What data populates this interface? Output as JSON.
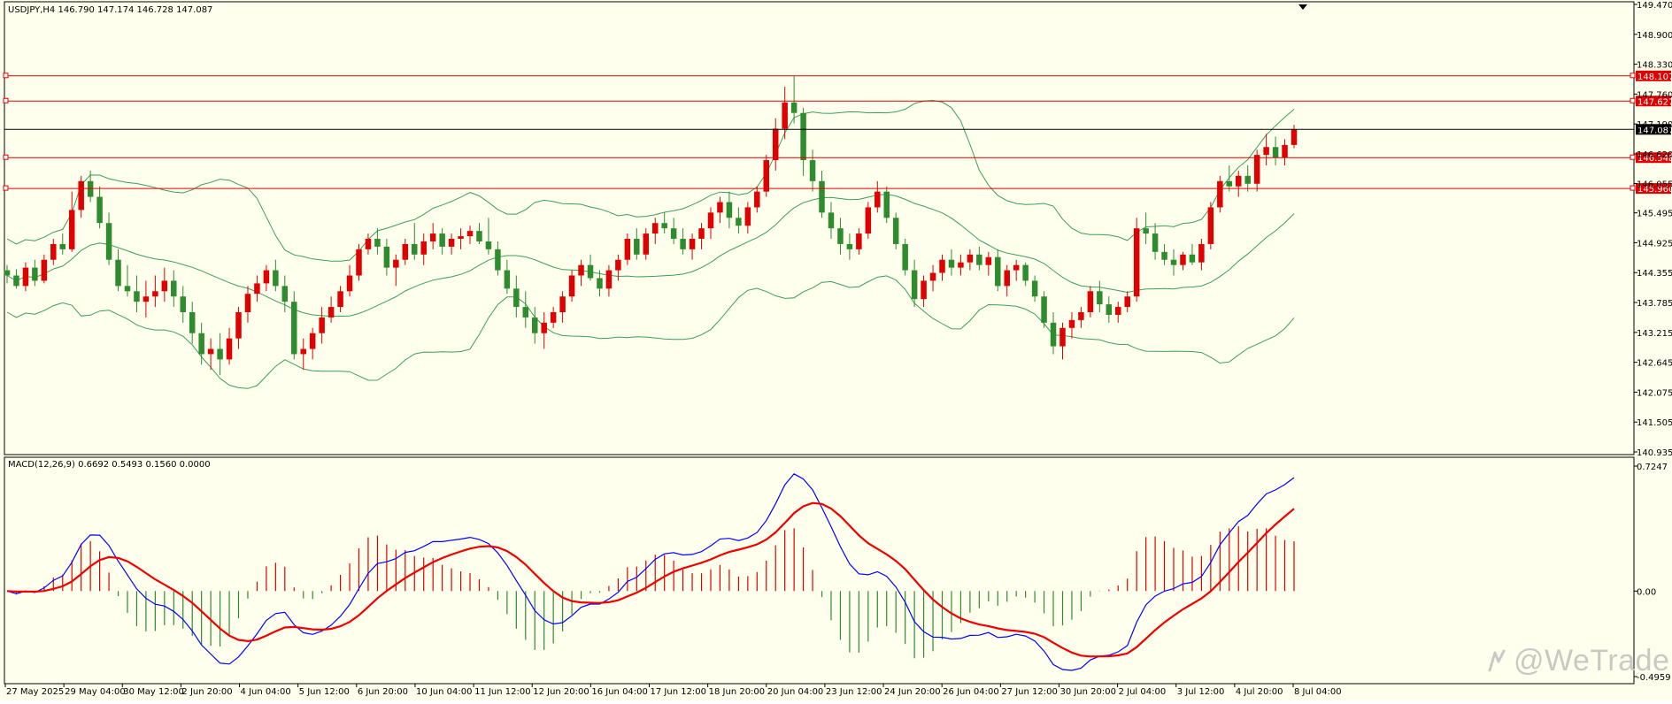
{
  "colors": {
    "background": "#ffffee",
    "frame": "#000000",
    "bull_candle": "#e00000",
    "bear_candle": "#2e8b2e",
    "bollinger": "#3c9e5a",
    "level_line": "#e00000",
    "current_price_line": "#000000",
    "macd_line": "#0000ff",
    "signal_line": "#ee0000",
    "hist_positive": "#e00000",
    "hist_negative": "#2e8b2e",
    "watermark": "#c9c9c4"
  },
  "header": {
    "symbol_info": "USDJPY,H4",
    "ohlc": "146.790 147.174 146.728 147.087"
  },
  "main_chart": {
    "type": "candlestick",
    "y_ticks": [
      "149.470",
      "148.900",
      "148.330",
      "147.760",
      "147.190",
      "146.620",
      "146.055",
      "145.495",
      "144.925",
      "144.355",
      "143.785",
      "143.215",
      "142.645",
      "142.075",
      "141.505",
      "140.935"
    ],
    "ylim": [
      140.935,
      149.47
    ],
    "level_lines": [
      {
        "value": 148.107,
        "label": "148.107"
      },
      {
        "value": 147.627,
        "label": "147.627"
      },
      {
        "value": 146.548,
        "label": "146.548"
      },
      {
        "value": 145.96,
        "label": "145.960"
      }
    ],
    "current_price": {
      "value": 147.087,
      "label": "147.087"
    },
    "indicators": [
      "Bollinger Bands"
    ]
  },
  "chart_data": {
    "type": "candlestick",
    "symbol": "USDJPY",
    "timeframe": "H4",
    "candles": [
      [
        144.4,
        144.5,
        144.15,
        144.3
      ],
      [
        144.3,
        144.42,
        144.05,
        144.1
      ],
      [
        144.1,
        144.55,
        144.0,
        144.45
      ],
      [
        144.45,
        144.6,
        144.1,
        144.2
      ],
      [
        144.2,
        144.7,
        144.15,
        144.6
      ],
      [
        144.6,
        145.0,
        144.5,
        144.9
      ],
      [
        144.9,
        145.1,
        144.7,
        144.8
      ],
      [
        144.8,
        145.9,
        144.75,
        145.55
      ],
      [
        145.55,
        146.2,
        145.4,
        146.1
      ],
      [
        146.1,
        146.3,
        145.7,
        145.8
      ],
      [
        145.8,
        146.0,
        145.2,
        145.3
      ],
      [
        145.3,
        145.5,
        144.5,
        144.6
      ],
      [
        144.6,
        144.8,
        144.0,
        144.1
      ],
      [
        144.1,
        144.5,
        143.9,
        144.0
      ],
      [
        144.0,
        144.3,
        143.6,
        143.8
      ],
      [
        143.8,
        144.2,
        143.5,
        143.9
      ],
      [
        143.9,
        144.3,
        143.7,
        144.0
      ],
      [
        144.0,
        144.45,
        143.8,
        144.2
      ],
      [
        144.2,
        144.4,
        143.7,
        143.9
      ],
      [
        143.9,
        144.1,
        143.4,
        143.6
      ],
      [
        143.6,
        143.8,
        143.0,
        143.2
      ],
      [
        143.2,
        143.4,
        142.6,
        142.8
      ],
      [
        142.8,
        143.1,
        142.5,
        142.9
      ],
      [
        142.9,
        143.2,
        142.4,
        142.7
      ],
      [
        142.7,
        143.3,
        142.6,
        143.1
      ],
      [
        143.1,
        143.7,
        142.9,
        143.6
      ],
      [
        143.6,
        144.1,
        143.4,
        143.95
      ],
      [
        143.95,
        144.3,
        143.8,
        144.15
      ],
      [
        144.15,
        144.5,
        144.0,
        144.4
      ],
      [
        144.4,
        144.6,
        144.0,
        144.1
      ],
      [
        144.1,
        144.3,
        143.6,
        143.8
      ],
      [
        143.8,
        144.0,
        142.7,
        142.8
      ],
      [
        142.8,
        143.1,
        142.5,
        142.9
      ],
      [
        142.9,
        143.3,
        142.7,
        143.2
      ],
      [
        143.2,
        143.7,
        143.0,
        143.5
      ],
      [
        143.5,
        143.9,
        143.4,
        143.7
      ],
      [
        143.7,
        144.1,
        143.6,
        144.0
      ],
      [
        144.0,
        144.5,
        143.9,
        144.3
      ],
      [
        144.3,
        144.9,
        144.2,
        144.8
      ],
      [
        144.8,
        145.1,
        144.7,
        145.0
      ],
      [
        145.0,
        145.2,
        144.7,
        144.85
      ],
      [
        144.85,
        145.0,
        144.3,
        144.45
      ],
      [
        144.45,
        144.7,
        144.1,
        144.6
      ],
      [
        144.6,
        145.0,
        144.5,
        144.9
      ],
      [
        144.9,
        145.3,
        144.6,
        144.7
      ],
      [
        144.7,
        145.1,
        144.5,
        144.95
      ],
      [
        144.95,
        145.3,
        144.8,
        145.1
      ],
      [
        145.1,
        145.2,
        144.7,
        144.85
      ],
      [
        144.85,
        145.1,
        144.7,
        145.0
      ],
      [
        145.0,
        145.2,
        144.8,
        145.05
      ],
      [
        145.05,
        145.25,
        144.9,
        145.15
      ],
      [
        145.15,
        145.3,
        144.9,
        144.95
      ],
      [
        144.95,
        145.4,
        144.7,
        144.8
      ],
      [
        144.8,
        144.95,
        144.3,
        144.4
      ],
      [
        144.4,
        144.6,
        143.95,
        144.05
      ],
      [
        144.05,
        144.3,
        143.5,
        143.7
      ],
      [
        143.7,
        144.0,
        143.3,
        143.5
      ],
      [
        143.5,
        143.7,
        143.0,
        143.2
      ],
      [
        143.2,
        143.6,
        142.9,
        143.4
      ],
      [
        143.4,
        143.7,
        143.3,
        143.6
      ],
      [
        143.6,
        144.0,
        143.4,
        143.9
      ],
      [
        143.9,
        144.4,
        143.8,
        144.3
      ],
      [
        144.3,
        144.6,
        144.1,
        144.5
      ],
      [
        144.5,
        144.7,
        144.2,
        144.25
      ],
      [
        144.25,
        144.4,
        143.9,
        144.05
      ],
      [
        144.05,
        144.5,
        143.9,
        144.4
      ],
      [
        144.4,
        144.7,
        144.2,
        144.6
      ],
      [
        144.6,
        145.1,
        144.5,
        145.0
      ],
      [
        145.0,
        145.2,
        144.6,
        144.7
      ],
      [
        144.7,
        145.2,
        144.6,
        145.1
      ],
      [
        145.1,
        145.4,
        144.9,
        145.3
      ],
      [
        145.3,
        145.5,
        145.1,
        145.2
      ],
      [
        145.2,
        145.4,
        144.9,
        145.0
      ],
      [
        145.0,
        145.2,
        144.7,
        144.8
      ],
      [
        144.8,
        145.1,
        144.6,
        145.0
      ],
      [
        145.0,
        145.3,
        144.8,
        145.2
      ],
      [
        145.2,
        145.6,
        145.0,
        145.5
      ],
      [
        145.5,
        145.8,
        145.3,
        145.7
      ],
      [
        145.7,
        145.9,
        145.2,
        145.4
      ],
      [
        145.4,
        145.6,
        145.1,
        145.25
      ],
      [
        145.25,
        145.7,
        145.1,
        145.6
      ],
      [
        145.6,
        146.0,
        145.5,
        145.9
      ],
      [
        145.9,
        146.6,
        145.8,
        146.5
      ],
      [
        146.5,
        147.3,
        146.3,
        147.1
      ],
      [
        147.1,
        147.9,
        146.9,
        147.6
      ],
      [
        147.6,
        148.1,
        147.2,
        147.4
      ],
      [
        147.4,
        147.5,
        146.2,
        146.5
      ],
      [
        146.5,
        146.7,
        145.9,
        146.1
      ],
      [
        146.1,
        146.3,
        145.4,
        145.5
      ],
      [
        145.5,
        145.7,
        145.0,
        145.2
      ],
      [
        145.2,
        145.4,
        144.7,
        144.9
      ],
      [
        144.9,
        145.1,
        144.6,
        144.8
      ],
      [
        144.8,
        145.2,
        144.7,
        145.1
      ],
      [
        145.1,
        145.7,
        145.0,
        145.6
      ],
      [
        145.6,
        146.1,
        145.5,
        145.9
      ],
      [
        145.9,
        146.0,
        145.3,
        145.4
      ],
      [
        145.4,
        145.5,
        144.8,
        144.9
      ],
      [
        144.9,
        145.0,
        144.3,
        144.4
      ],
      [
        144.4,
        144.6,
        143.7,
        143.85
      ],
      [
        143.85,
        144.3,
        143.7,
        144.2
      ],
      [
        144.2,
        144.5,
        144.0,
        144.35
      ],
      [
        144.35,
        144.7,
        144.2,
        144.6
      ],
      [
        144.6,
        144.8,
        144.3,
        144.45
      ],
      [
        144.45,
        144.7,
        144.3,
        144.55
      ],
      [
        144.55,
        144.8,
        144.4,
        144.7
      ],
      [
        144.7,
        144.85,
        144.4,
        144.5
      ],
      [
        144.5,
        144.75,
        144.3,
        144.65
      ],
      [
        144.65,
        144.8,
        144.0,
        144.1
      ],
      [
        144.1,
        144.5,
        143.9,
        144.4
      ],
      [
        144.4,
        144.6,
        144.2,
        144.5
      ],
      [
        144.5,
        144.55,
        144.1,
        144.2
      ],
      [
        144.2,
        144.3,
        143.8,
        143.9
      ],
      [
        143.9,
        144.0,
        143.3,
        143.4
      ],
      [
        143.4,
        143.6,
        142.8,
        142.95
      ],
      [
        142.95,
        143.4,
        142.7,
        143.3
      ],
      [
        143.3,
        143.6,
        143.1,
        143.45
      ],
      [
        143.45,
        143.7,
        143.3,
        143.6
      ],
      [
        143.6,
        144.1,
        143.5,
        144.0
      ],
      [
        144.0,
        144.2,
        143.6,
        143.75
      ],
      [
        143.75,
        143.9,
        143.4,
        143.55
      ],
      [
        143.55,
        143.8,
        143.4,
        143.7
      ],
      [
        143.7,
        144.0,
        143.6,
        143.9
      ],
      [
        143.9,
        145.4,
        143.8,
        145.2
      ],
      [
        145.2,
        145.5,
        144.9,
        145.1
      ],
      [
        145.1,
        145.3,
        144.6,
        144.75
      ],
      [
        144.75,
        144.9,
        144.5,
        144.6
      ],
      [
        144.6,
        144.8,
        144.3,
        144.5
      ],
      [
        144.5,
        144.75,
        144.4,
        144.7
      ],
      [
        144.7,
        144.9,
        144.5,
        144.55
      ],
      [
        144.55,
        145.0,
        144.4,
        144.9
      ],
      [
        144.9,
        145.7,
        144.8,
        145.6
      ],
      [
        145.6,
        146.2,
        145.5,
        146.1
      ],
      [
        146.1,
        146.4,
        145.9,
        146.0
      ],
      [
        146.0,
        146.3,
        145.8,
        146.2
      ],
      [
        146.2,
        146.4,
        145.9,
        146.05
      ],
      [
        146.05,
        146.7,
        145.9,
        146.6
      ],
      [
        146.6,
        147.0,
        146.4,
        146.75
      ],
      [
        146.75,
        146.95,
        146.4,
        146.55
      ],
      [
        146.55,
        146.9,
        146.4,
        146.79
      ],
      [
        146.79,
        147.174,
        146.728,
        147.087
      ]
    ],
    "x_labels": [
      "27 May 2025",
      "29 May 04:00",
      "30 May 12:00",
      "2 Jun 20:00",
      "4 Jun 04:00",
      "5 Jun 12:00",
      "6 Jun 20:00",
      "10 Jun 04:00",
      "11 Jun 12:00",
      "12 Jun 20:00",
      "16 Jun 04:00",
      "17 Jun 12:00",
      "18 Jun 20:00",
      "20 Jun 04:00",
      "23 Jun 12:00",
      "24 Jun 20:00",
      "26 Jun 04:00",
      "27 Jun 12:00",
      "30 Jun 20:00",
      "2 Jul 04:00",
      "3 Jul 12:00",
      "4 Jul 20:00",
      "8 Jul 04:00"
    ],
    "series": [
      {
        "name": "MACD",
        "values": []
      }
    ]
  },
  "macd_panel": {
    "label": "MACD(12,26,9) 0.6692 0.5493 0.1560 0.0000",
    "y_ticks": [
      "0.7247",
      "0.00",
      "-0.4959"
    ],
    "ylim": [
      -0.4959,
      0.7247
    ]
  },
  "footer": {
    "x_labels": [
      "27 May 2025",
      "29 May 04:00",
      "30 May 12:00",
      "2 Jun 20:00",
      "4 Jun 04:00",
      "5 Jun 12:00",
      "6 Jun 20:00",
      "10 Jun 04:00",
      "11 Jun 12:00",
      "12 Jun 20:00",
      "16 Jun 04:00",
      "17 Jun 12:00",
      "18 Jun 20:00",
      "20 Jun 04:00",
      "23 Jun 12:00",
      "24 Jun 20:00",
      "26 Jun 04:00",
      "27 Jun 12:00",
      "30 Jun 20:00",
      "2 Jul 04:00",
      "3 Jul 12:00",
      "4 Jul 20:00",
      "8 Jul 04:00"
    ]
  },
  "watermark": {
    "text": "@WeTrade",
    "logo_icon": "wetrade-logo-icon"
  }
}
